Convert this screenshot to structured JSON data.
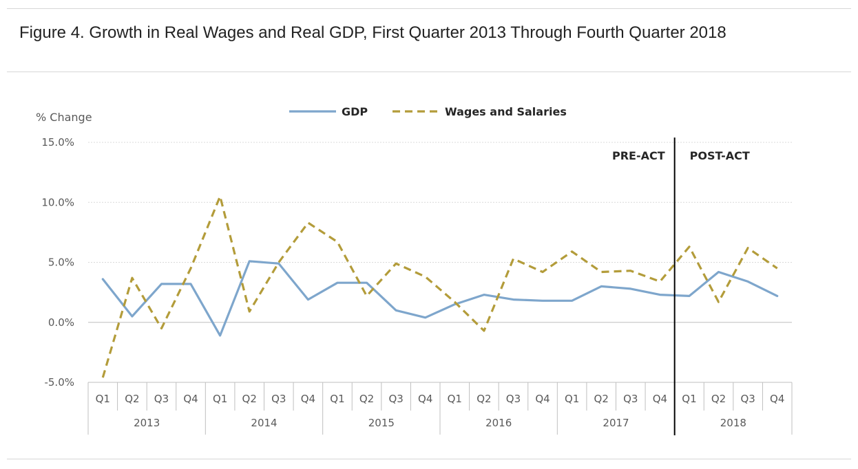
{
  "figure_title": "Figure 4. Growth in Real Wages and Real GDP, First Quarter 2013 Through Fourth Quarter 2018",
  "colors": {
    "gdp": "#7ea6cc",
    "wages": "#b39c3a",
    "grid": "#d9d9d9",
    "axis": "#bfbfbf",
    "text": "#595959",
    "divider": "#000000"
  },
  "chart_data": {
    "type": "line",
    "ylabel": "% Change",
    "ylim": [
      -5,
      15
    ],
    "yticks": [
      -5,
      0,
      5,
      10,
      15
    ],
    "ytick_labels": [
      "-5.0%",
      "0.0%",
      "5.0%",
      "10.0%",
      "15.0%"
    ],
    "grid": true,
    "legend_position": "top-center",
    "quarters": [
      "Q1",
      "Q2",
      "Q3",
      "Q4"
    ],
    "years": [
      "2013",
      "2014",
      "2015",
      "2016",
      "2017",
      "2018"
    ],
    "categories": [
      "2013 Q1",
      "2013 Q2",
      "2013 Q3",
      "2013 Q4",
      "2014 Q1",
      "2014 Q2",
      "2014 Q3",
      "2014 Q4",
      "2015 Q1",
      "2015 Q2",
      "2015 Q3",
      "2015 Q4",
      "2016 Q1",
      "2016 Q2",
      "2016 Q3",
      "2016 Q4",
      "2017 Q1",
      "2017 Q2",
      "2017 Q3",
      "2017 Q4",
      "2018 Q1",
      "2018 Q2",
      "2018 Q3",
      "2018 Q4"
    ],
    "series": [
      {
        "name": "GDP",
        "style": "solid",
        "values": [
          3.6,
          0.5,
          3.2,
          3.2,
          -1.1,
          5.1,
          4.9,
          1.9,
          3.3,
          3.3,
          1.0,
          0.4,
          1.5,
          2.3,
          1.9,
          1.8,
          1.8,
          3.0,
          2.8,
          2.3,
          2.2,
          4.2,
          3.4,
          2.2
        ]
      },
      {
        "name": "Wages and Salaries",
        "style": "dashed",
        "values": [
          -4.6,
          3.7,
          -0.5,
          4.5,
          10.5,
          0.9,
          5.0,
          8.3,
          6.7,
          2.2,
          4.9,
          3.8,
          1.7,
          -0.7,
          5.3,
          4.2,
          5.9,
          4.2,
          4.3,
          3.4,
          6.3,
          1.7,
          6.2,
          4.5
        ]
      }
    ],
    "annotations": {
      "pre": "PRE-ACT",
      "post": "POST-ACT",
      "divider_between": [
        "2017 Q4",
        "2018 Q1"
      ]
    }
  }
}
